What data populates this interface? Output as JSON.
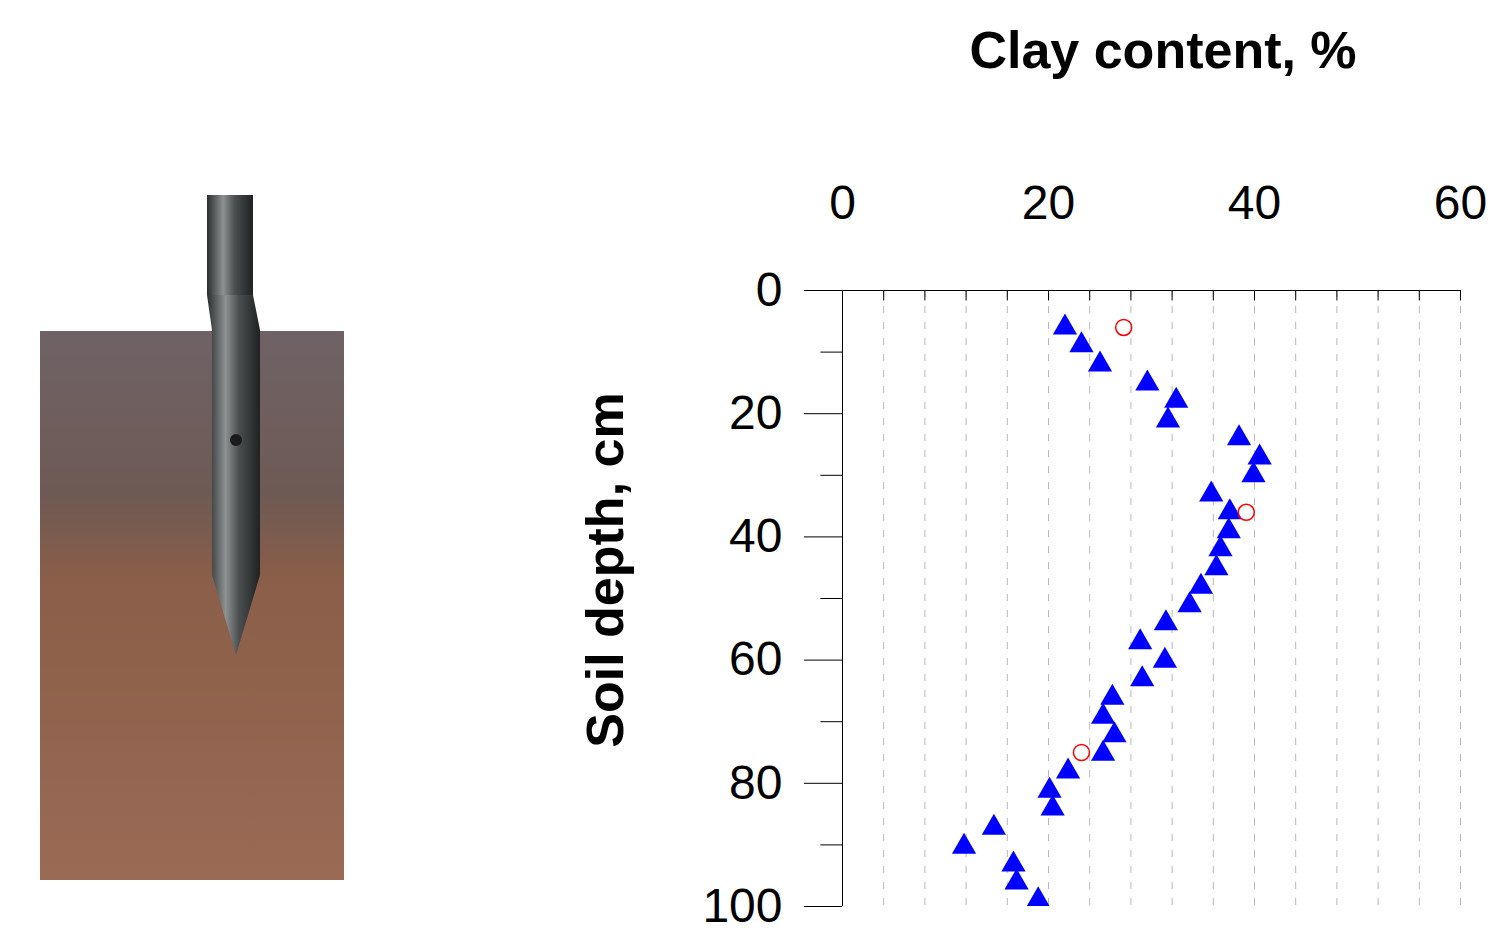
{
  "chart_data": {
    "type": "scatter",
    "x_label": "Clay content, %",
    "y_label": "Soil depth, cm",
    "xlim": [
      0,
      60
    ],
    "xticks": [
      0,
      20,
      40,
      60
    ],
    "ylim": [
      0,
      100
    ],
    "yticks": [
      0,
      20,
      40,
      60,
      80,
      100
    ],
    "grid": true,
    "series": [
      {
        "color": "#0000ff",
        "marker": "triangle",
        "x": [
          21.6,
          23.2,
          25.0,
          29.6,
          32.4,
          31.6,
          38.5,
          40.5,
          39.9,
          35.8,
          37.6,
          37.5,
          36.7,
          36.3,
          34.8,
          33.7,
          31.4,
          28.9,
          31.3,
          29.1,
          26.2,
          25.3,
          26.4,
          25.3,
          21.9,
          20.1,
          20.4,
          14.7,
          11.8,
          16.6,
          16.9,
          19.0
        ],
        "y": [
          6.0,
          8.9,
          12.0,
          15.1,
          17.9,
          21.1,
          24.0,
          27.1,
          30.0,
          33.1,
          36.0,
          39.1,
          42.0,
          45.1,
          48.1,
          51.1,
          54.0,
          57.1,
          60.1,
          63.1,
          66.1,
          69.2,
          72.2,
          75.2,
          78.1,
          81.2,
          84.1,
          87.2,
          90.3,
          93.2,
          96.1,
          99.0
        ]
      },
      {
        "color": "#ff0000",
        "marker": "open_circle",
        "x": [
          27.3,
          39.2,
          23.2
        ],
        "y": [
          6.0,
          36.0,
          75.0
        ]
      }
    ]
  }
}
